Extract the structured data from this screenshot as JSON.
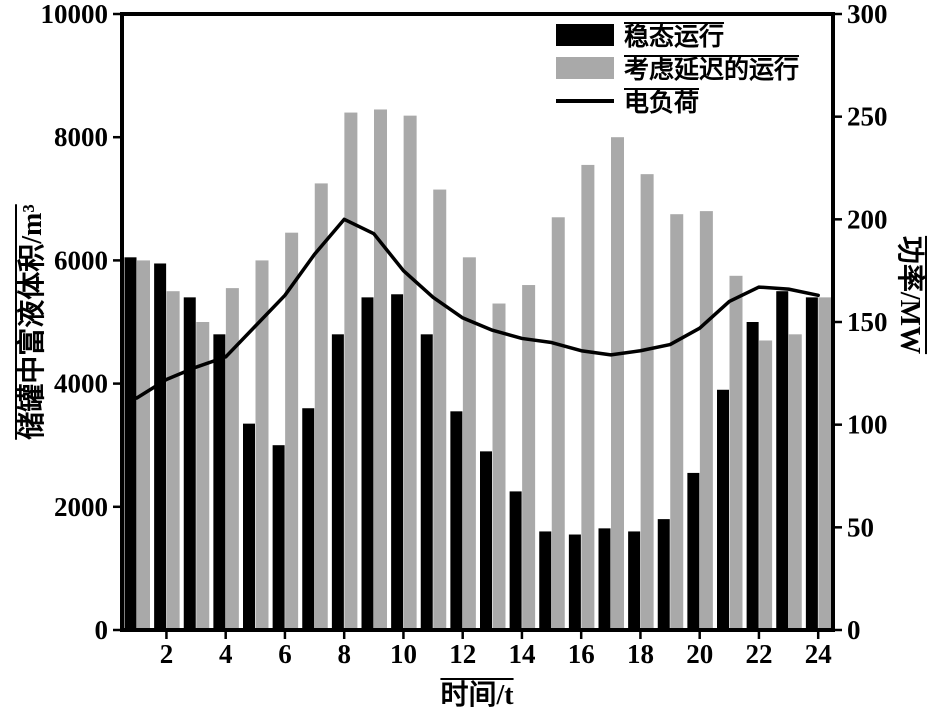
{
  "chart_data": {
    "type": "bar",
    "subtype": "grouped-bar-with-line",
    "categories": [
      1,
      2,
      3,
      4,
      5,
      6,
      7,
      8,
      9,
      10,
      11,
      12,
      13,
      14,
      15,
      16,
      17,
      18,
      19,
      20,
      21,
      22,
      23,
      24
    ],
    "series": [
      {
        "name": "稳态运行",
        "type": "bar",
        "axis": "left",
        "color": "#000000",
        "values": [
          6050,
          5950,
          5400,
          4800,
          3350,
          3000,
          3600,
          4800,
          5400,
          5450,
          4800,
          3550,
          2900,
          2250,
          1600,
          1550,
          1650,
          1600,
          1800,
          2550,
          3900,
          5000,
          5500,
          5400
        ]
      },
      {
        "name": "考虑延迟的运行",
        "type": "bar",
        "axis": "left",
        "color": "#a9a9a9",
        "values": [
          6000,
          5500,
          5000,
          5550,
          6000,
          6450,
          7250,
          8400,
          8450,
          8350,
          7150,
          6050,
          5300,
          5600,
          6700,
          7550,
          8000,
          7400,
          6750,
          6800,
          5750,
          4700,
          4800,
          5400
        ]
      },
      {
        "name": "电负荷",
        "type": "line",
        "axis": "right",
        "color": "#000000",
        "values": [
          113,
          122,
          128,
          133,
          148,
          163,
          183,
          200,
          193,
          175,
          162,
          152,
          146,
          142,
          140,
          136,
          134,
          136,
          139,
          147,
          160,
          167,
          166,
          163
        ]
      }
    ],
    "left_axis": {
      "label": "储罐中富液体积/m³",
      "min": 0,
      "max": 10000,
      "ticks": [
        0,
        2000,
        4000,
        6000,
        8000,
        10000
      ]
    },
    "right_axis": {
      "label": "功率/MW",
      "min": 0,
      "max": 300,
      "ticks": [
        0,
        50,
        100,
        150,
        200,
        250,
        300
      ]
    },
    "x_axis": {
      "label": "时间/t",
      "tick_labels": [
        2,
        4,
        6,
        8,
        10,
        12,
        14,
        16,
        18,
        20,
        22,
        24
      ]
    },
    "legend_position": "top-inside",
    "grid": false,
    "frame_color": "#000000",
    "background": "#ffffff"
  }
}
